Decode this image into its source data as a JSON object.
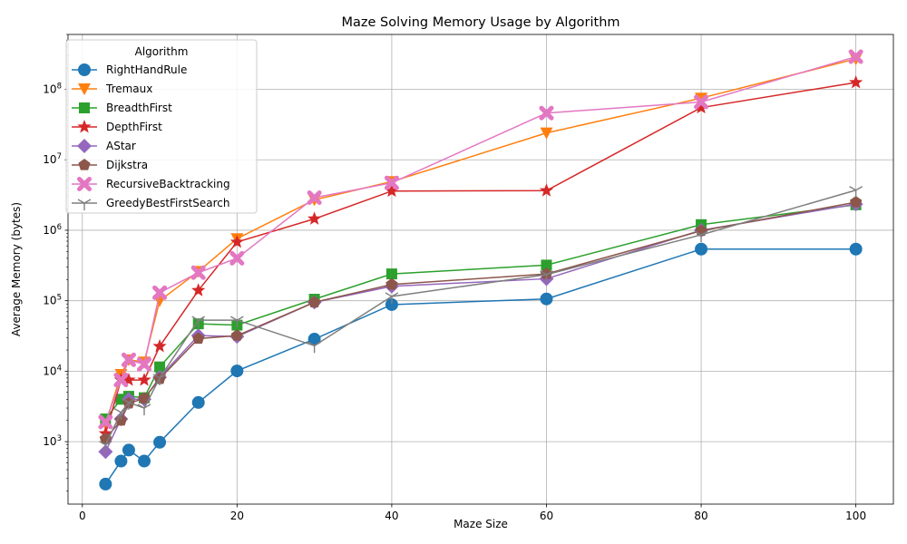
{
  "chart_data": {
    "type": "line",
    "title": "Maze Solving Memory Usage by Algorithm",
    "xlabel": "Maze Size",
    "ylabel": "Average Memory (bytes)",
    "xlim": [
      -1.85,
      104.85
    ],
    "ylim": [
      130,
      600000000
    ],
    "yscale": "log",
    "grid": true,
    "x_ticks": [
      0,
      20,
      40,
      60,
      80,
      100
    ],
    "y_ticks": [
      1000,
      10000,
      100000,
      1000000,
      10000000,
      100000000
    ],
    "y_tick_labels": [
      {
        "base": "10",
        "exp": "3"
      },
      {
        "base": "10",
        "exp": "4"
      },
      {
        "base": "10",
        "exp": "5"
      },
      {
        "base": "10",
        "exp": "6"
      },
      {
        "base": "10",
        "exp": "7"
      },
      {
        "base": "10",
        "exp": "8"
      }
    ],
    "legend": {
      "title": "Algorithm",
      "placement": "top-left"
    },
    "x": [
      3,
      5,
      6,
      8,
      10,
      15,
      20,
      30,
      40,
      60,
      80,
      100
    ],
    "series": [
      {
        "name": "RightHandRule",
        "color": "#1f77b4",
        "marker": "circle",
        "values": [
          250,
          530,
          760,
          530,
          980,
          3600,
          10100,
          28500,
          88000,
          106000,
          540000,
          540000
        ]
      },
      {
        "name": "Tremaux",
        "color": "#ff7f0e",
        "marker": "triangle-down",
        "values": [
          1800,
          9000,
          14500,
          13500,
          100000,
          260000,
          760000,
          2700000,
          4900000,
          24000000,
          75000000,
          270000000
        ]
      },
      {
        "name": "BreadthFirst",
        "color": "#2ca02c",
        "marker": "square",
        "values": [
          2100,
          4000,
          4400,
          4200,
          11500,
          47000,
          45000,
          105000,
          240000,
          320000,
          1200000,
          2300000
        ]
      },
      {
        "name": "DepthFirst",
        "color": "#d62728",
        "marker": "star",
        "values": [
          1300,
          7500,
          7500,
          7500,
          22500,
          140000,
          680000,
          1450000,
          3600000,
          3650000,
          55000000,
          125000000
        ]
      },
      {
        "name": "AStar",
        "color": "#9467bd",
        "marker": "diamond",
        "values": [
          720,
          2100,
          4000,
          4000,
          8200,
          32000,
          31000,
          95000,
          160000,
          205000,
          1000000,
          2350000
        ]
      },
      {
        "name": "Dijkstra",
        "color": "#8c564b",
        "marker": "pentagon",
        "values": [
          1100,
          2000,
          3500,
          4100,
          7800,
          29000,
          32000,
          95000,
          170000,
          240000,
          980000,
          2500000
        ]
      },
      {
        "name": "RecursiveBacktracking",
        "color": "#e377c2",
        "marker": "x-filled",
        "values": [
          1900,
          7500,
          14500,
          12500,
          130000,
          250000,
          400000,
          2900000,
          4700000,
          46000000,
          66000000,
          290000000
        ]
      },
      {
        "name": "GreedyBestFirstSearch",
        "color": "#7f7f7f",
        "marker": "tri-down",
        "values": [
          900,
          2600,
          3600,
          3000,
          8000,
          53000,
          53000,
          23000,
          115000,
          235000,
          860000,
          3700000
        ]
      }
    ]
  }
}
